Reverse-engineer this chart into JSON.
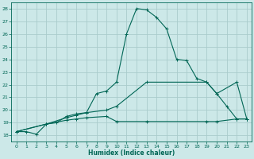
{
  "xlabel": "Humidex (Indice chaleur)",
  "bg_color": "#cce8e8",
  "grid_color": "#aacccc",
  "line_color": "#006655",
  "xlim": [
    -0.5,
    23.5
  ],
  "ylim": [
    17.5,
    28.5
  ],
  "yticks": [
    18,
    19,
    20,
    21,
    22,
    23,
    24,
    25,
    26,
    27,
    28
  ],
  "xticks": [
    0,
    1,
    2,
    3,
    4,
    5,
    6,
    7,
    8,
    9,
    10,
    11,
    12,
    13,
    14,
    15,
    16,
    17,
    18,
    19,
    20,
    21,
    22,
    23
  ],
  "curve1_x": [
    0,
    1,
    2,
    3,
    4,
    5,
    6,
    7,
    8,
    9,
    10,
    11,
    12,
    13,
    14,
    15,
    16,
    17,
    18,
    19,
    20,
    21,
    22,
    23
  ],
  "curve1_y": [
    18.3,
    18.3,
    18.1,
    18.9,
    19.0,
    19.5,
    19.7,
    19.8,
    21.3,
    21.5,
    22.2,
    26.0,
    28.0,
    27.9,
    27.3,
    26.4,
    24.0,
    23.9,
    22.5,
    22.2,
    21.3,
    20.3,
    19.3,
    19.3
  ],
  "curve2_x": [
    0,
    3,
    5,
    6,
    7,
    9,
    10,
    13,
    19,
    20,
    22,
    23
  ],
  "curve2_y": [
    18.3,
    18.9,
    19.4,
    19.6,
    19.8,
    20.0,
    20.3,
    22.2,
    22.2,
    21.3,
    22.2,
    19.3
  ],
  "curve3_x": [
    0,
    3,
    5,
    6,
    7,
    9,
    10,
    13,
    19,
    20,
    22,
    23
  ],
  "curve3_y": [
    18.3,
    18.9,
    19.2,
    19.3,
    19.4,
    19.5,
    19.1,
    19.1,
    19.1,
    19.1,
    19.3,
    19.3
  ]
}
